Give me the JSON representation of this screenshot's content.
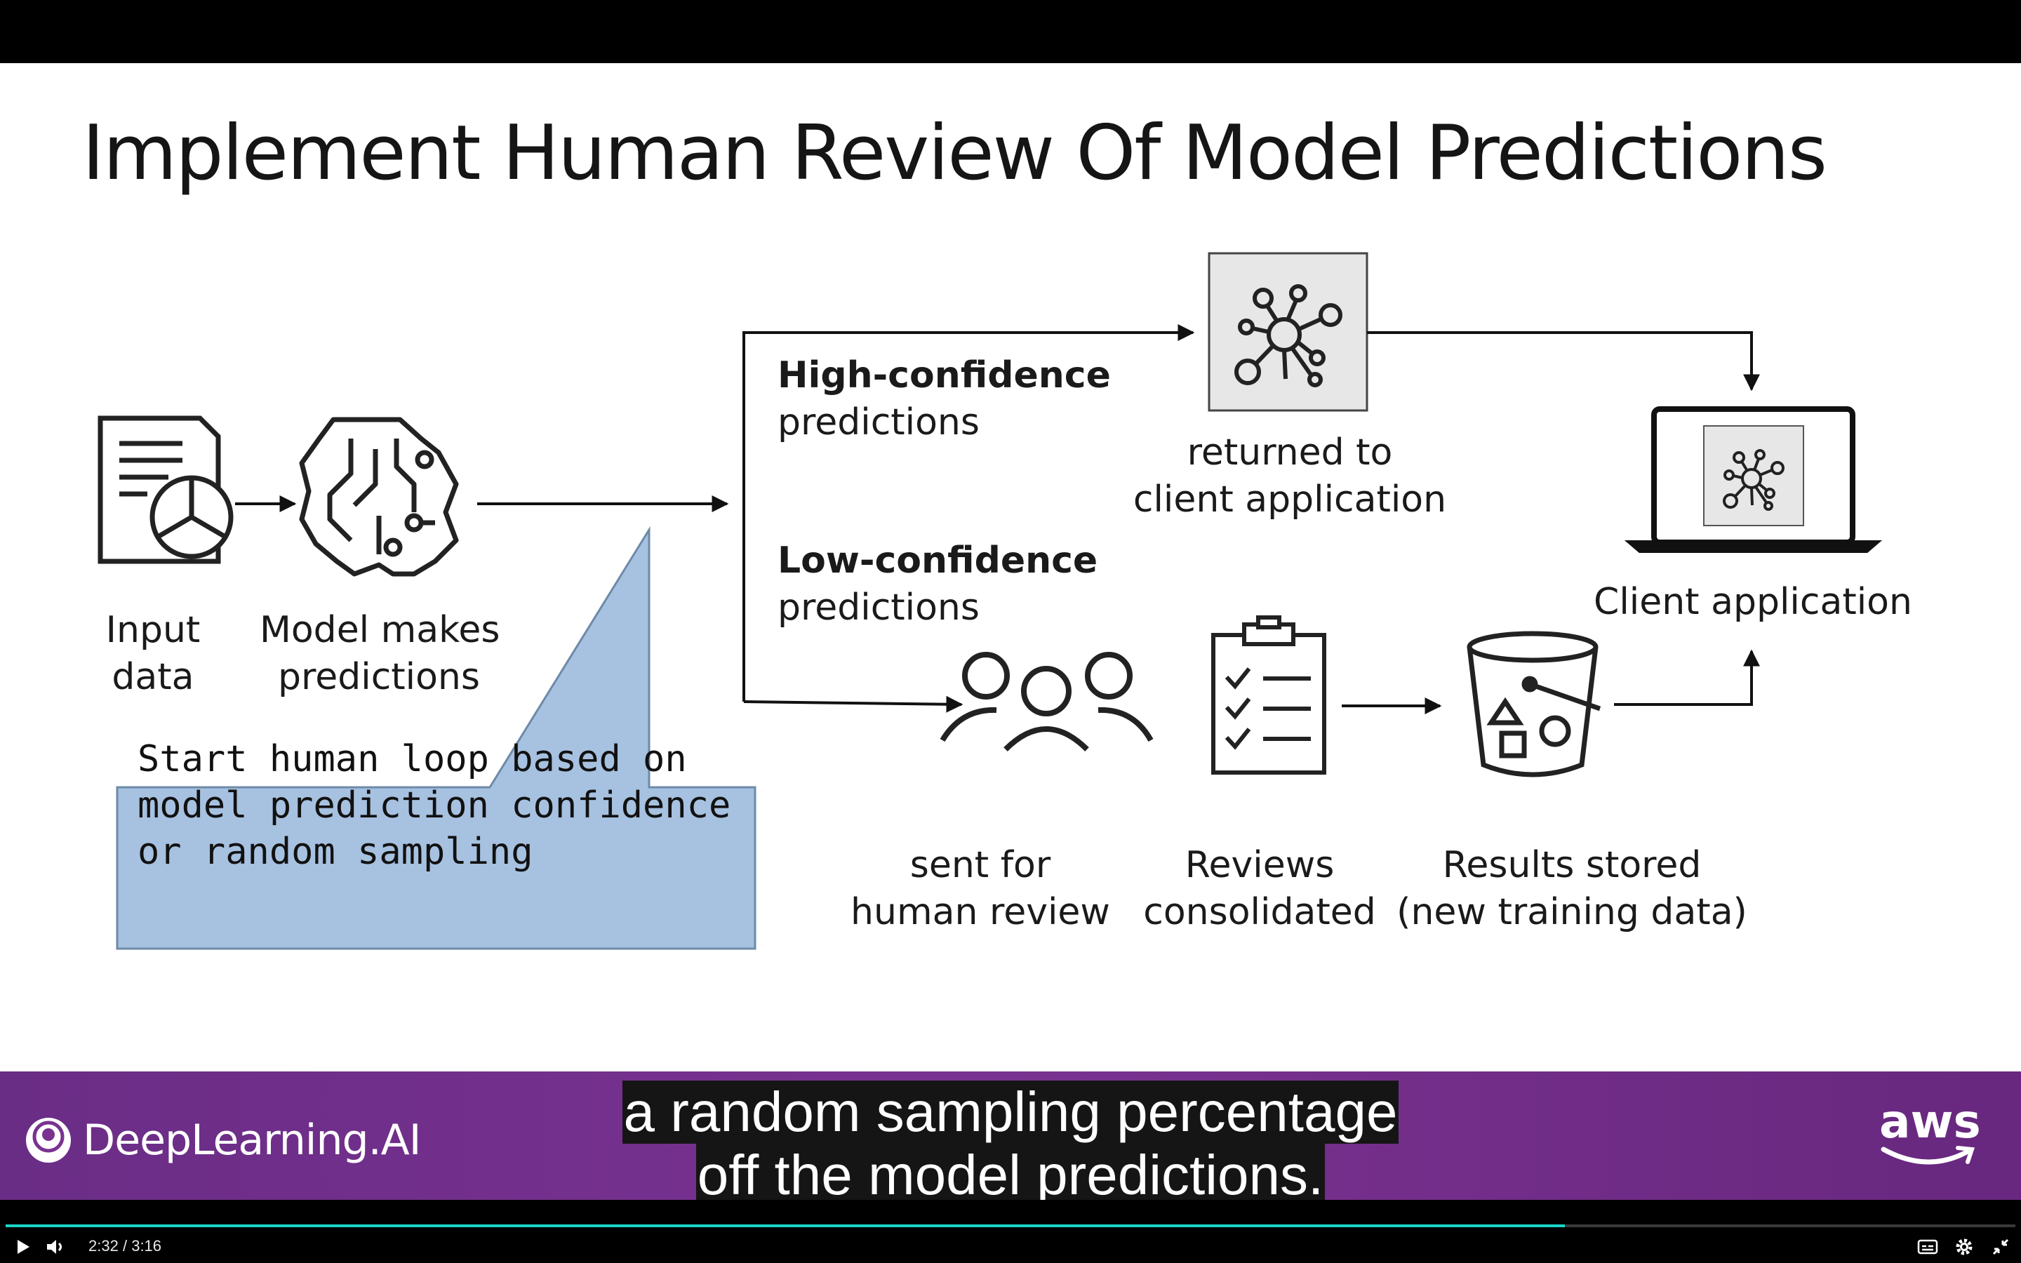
{
  "slide": {
    "title": "Implement Human Review Of Model Predictions",
    "input_label_1": "Input",
    "input_label_2": "data",
    "model_label_1": "Model makes",
    "model_label_2": "predictions",
    "high_bold": "High-confidence",
    "high_rest": "predictions",
    "low_bold": "Low-confidence",
    "low_rest": "predictions",
    "returned_1": "returned to",
    "returned_2": "client application",
    "client_label": "Client application",
    "sent_1": "sent for",
    "sent_2": "human review",
    "reviews_1": "Reviews",
    "reviews_2": "consolidated",
    "results_1": "Results stored",
    "results_2": "(new training data)",
    "callout_line_1": "Start human loop based on",
    "callout_line_2": "model prediction confidence",
    "callout_line_3": "or random sampling",
    "callout_color": "#a7c1e0"
  },
  "icons": {
    "document": "document-pie-chart-icon",
    "brain": "brain-circuit-icon",
    "network": "neural-network-icon",
    "laptop": "laptop-icon",
    "people": "people-group-icon",
    "checklist": "clipboard-checklist-icon",
    "bucket": "storage-bucket-icon"
  },
  "banner": {
    "brand": "DeepLearning.AI",
    "partner": "aws",
    "color": "#7a3291"
  },
  "captions": {
    "line_1": "a random sampling percentage",
    "line_2": "off the model predictions."
  },
  "player": {
    "current_time": "2:32",
    "separator": "/",
    "duration": "3:16",
    "progress_fraction": 0.776,
    "accent": "#19d6c9"
  }
}
